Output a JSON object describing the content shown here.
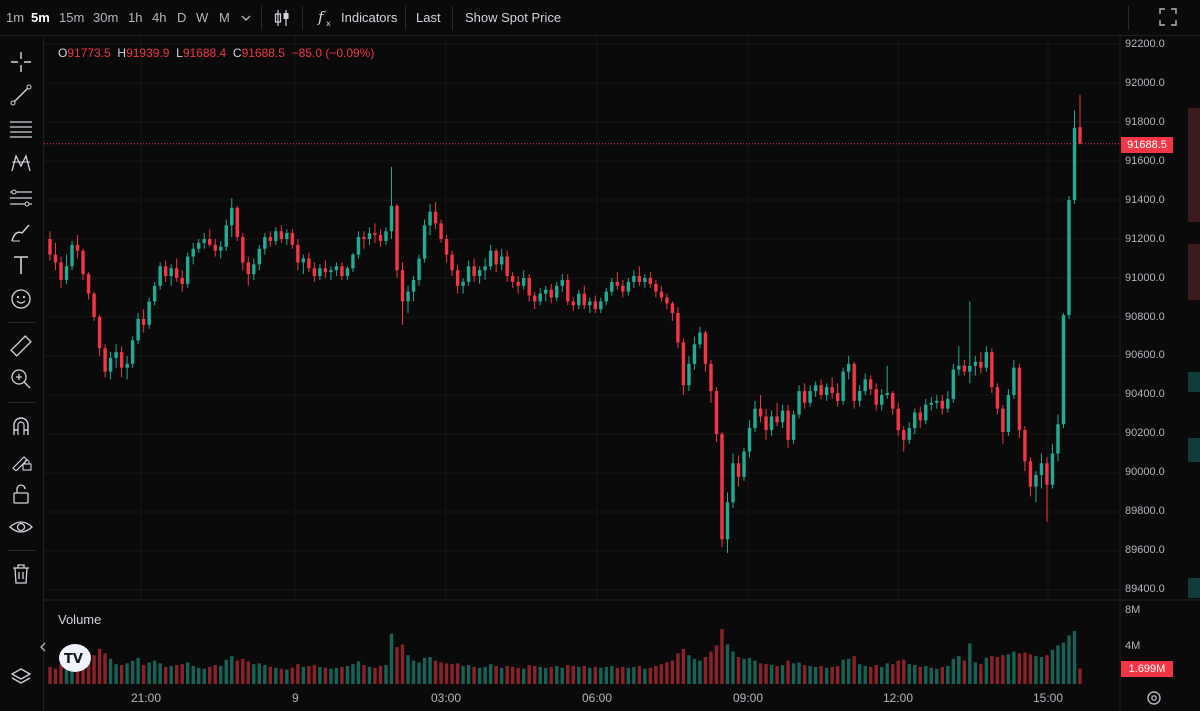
{
  "toolbar": {
    "timeframes": [
      {
        "label": "1m",
        "active": false
      },
      {
        "label": "5m",
        "active": true
      },
      {
        "label": "15m",
        "active": false
      },
      {
        "label": "30m",
        "active": false
      },
      {
        "label": "1h",
        "active": false
      },
      {
        "label": "4h",
        "active": false
      },
      {
        "label": "D",
        "active": false
      },
      {
        "label": "W",
        "active": false
      },
      {
        "label": "M",
        "active": false
      }
    ],
    "indicators_label": "Indicators",
    "last_label": "Last",
    "spot_label": "Show Spot Price"
  },
  "left_tools": [
    "crosshair-icon",
    "trend-line-icon",
    "horizontal-lines-icon",
    "pattern-icon",
    "fib-lines-icon",
    "brush-icon",
    "text-icon",
    "emoji-icon",
    "ruler-icon",
    "zoom-in-icon",
    "magnet-icon",
    "lock-drawing-icon",
    "unlock-icon",
    "eye-icon",
    "trash-icon"
  ],
  "ohlc": {
    "o_key": "O",
    "o": "91773.5",
    "h_key": "H",
    "h": "91939.9",
    "l_key": "L",
    "l": "91688.4",
    "c_key": "C",
    "c": "91688.5",
    "change": "−85.0 (−0.09%)"
  },
  "colors": {
    "up": "#22ab94",
    "down": "#f23645",
    "background": "#0a0a0a"
  },
  "price_axis": [
    "92200.0",
    "92000.0",
    "91800.0",
    "91600.0",
    "91400.0",
    "91200.0",
    "91000.0",
    "90800.0",
    "90600.0",
    "90400.0",
    "90200.0",
    "90000.0",
    "89800.0",
    "89600.0",
    "89400.0"
  ],
  "current_price": "91688.5",
  "volume": {
    "label": "Volume",
    "axis": [
      "8M",
      "4M"
    ],
    "current": "1.699M"
  },
  "time_axis": [
    "21:00",
    "9",
    "03:00",
    "06:00",
    "09:00",
    "12:00",
    "15:00"
  ],
  "chart_data": {
    "type": "candlestick",
    "interval": "5m",
    "y_range": [
      89300,
      92280
    ],
    "volume_range_millions": [
      0,
      8
    ],
    "candles": [
      [
        91200,
        91240,
        91090,
        91120,
        1.9
      ],
      [
        91120,
        91180,
        91040,
        91080,
        1.7
      ],
      [
        91080,
        91110,
        90950,
        90990,
        2.2
      ],
      [
        90990,
        91120,
        90970,
        91060,
        1.8
      ],
      [
        91060,
        91190,
        91040,
        91170,
        2.0
      ],
      [
        91170,
        91220,
        91100,
        91140,
        2.4
      ],
      [
        91140,
        91150,
        90990,
        91020,
        2.6
      ],
      [
        91020,
        91030,
        90890,
        90920,
        2.9
      ],
      [
        90920,
        90930,
        90780,
        90800,
        3.2
      ],
      [
        90800,
        90810,
        90600,
        90640,
        3.9
      ],
      [
        90640,
        90660,
        90490,
        90520,
        3.4
      ],
      [
        90520,
        90620,
        90480,
        90590,
        2.8
      ],
      [
        90590,
        90660,
        90540,
        90620,
        2.2
      ],
      [
        90620,
        90650,
        90490,
        90540,
        2.1
      ],
      [
        90540,
        90600,
        90480,
        90560,
        2.3
      ],
      [
        90560,
        90700,
        90540,
        90680,
        2.6
      ],
      [
        90680,
        90820,
        90660,
        90790,
        2.9
      ],
      [
        90790,
        90840,
        90720,
        90760,
        2.1
      ],
      [
        90760,
        90900,
        90740,
        90880,
        2.4
      ],
      [
        90880,
        90980,
        90860,
        90960,
        2.6
      ],
      [
        90960,
        91080,
        90940,
        91060,
        2.3
      ],
      [
        91060,
        91090,
        90980,
        91010,
        1.9
      ],
      [
        91010,
        91070,
        90960,
        91050,
        2.0
      ],
      [
        91050,
        91100,
        90980,
        91000,
        2.1
      ],
      [
        91000,
        91040,
        90930,
        90970,
        2.2
      ],
      [
        90970,
        91130,
        90950,
        91110,
        2.4
      ],
      [
        91110,
        91180,
        91070,
        91150,
        2.0
      ],
      [
        91150,
        91200,
        91130,
        91180,
        1.8
      ],
      [
        91180,
        91230,
        91150,
        91200,
        1.7
      ],
      [
        91200,
        91250,
        91160,
        91170,
        1.9
      ],
      [
        91170,
        91200,
        91110,
        91140,
        2.1
      ],
      [
        91140,
        91190,
        91100,
        91160,
        2.0
      ],
      [
        91160,
        91300,
        91140,
        91270,
        2.7
      ],
      [
        91270,
        91410,
        91210,
        91360,
        3.1
      ],
      [
        91360,
        91370,
        91190,
        91210,
        2.6
      ],
      [
        91210,
        91230,
        91040,
        91080,
        2.8
      ],
      [
        91080,
        91110,
        90960,
        91020,
        2.5
      ],
      [
        91020,
        91100,
        90990,
        91070,
        2.2
      ],
      [
        91070,
        91170,
        91040,
        91150,
        2.3
      ],
      [
        91150,
        91230,
        91120,
        91210,
        2.1
      ],
      [
        91210,
        91240,
        91160,
        91190,
        1.9
      ],
      [
        91190,
        91260,
        91170,
        91240,
        1.8
      ],
      [
        91240,
        91270,
        91180,
        91200,
        1.7
      ],
      [
        91200,
        91250,
        91170,
        91230,
        1.6
      ],
      [
        91230,
        91250,
        91150,
        91170,
        1.8
      ],
      [
        91170,
        91200,
        91040,
        91080,
        2.2
      ],
      [
        91080,
        91120,
        91020,
        91100,
        1.9
      ],
      [
        91100,
        91130,
        91030,
        91050,
        2.0
      ],
      [
        91050,
        91080,
        90980,
        91010,
        2.1
      ],
      [
        91010,
        91070,
        90990,
        91050,
        1.9
      ],
      [
        91050,
        91090,
        91000,
        91030,
        1.8
      ],
      [
        91030,
        91060,
        90990,
        91040,
        1.7
      ],
      [
        91040,
        91080,
        91010,
        91060,
        1.8
      ],
      [
        91060,
        91080,
        90990,
        91010,
        1.9
      ],
      [
        91010,
        91060,
        90990,
        91050,
        2.0
      ],
      [
        91050,
        91130,
        91030,
        91120,
        2.2
      ],
      [
        91120,
        91240,
        91100,
        91210,
        2.5
      ],
      [
        91210,
        91240,
        91150,
        91200,
        2.1
      ],
      [
        91200,
        91260,
        91170,
        91230,
        1.9
      ],
      [
        91230,
        91280,
        91180,
        91220,
        1.8
      ],
      [
        91220,
        91250,
        91160,
        91190,
        2.0
      ],
      [
        91190,
        91260,
        91170,
        91240,
        2.1
      ],
      [
        91240,
        91570,
        91200,
        91370,
        5.6
      ],
      [
        91370,
        91380,
        91000,
        91040,
        4.1
      ],
      [
        91040,
        91080,
        90760,
        90880,
        4.4
      ],
      [
        90880,
        90960,
        90820,
        90930,
        3.2
      ],
      [
        90930,
        91010,
        90880,
        90990,
        2.6
      ],
      [
        90990,
        91120,
        90960,
        91100,
        2.4
      ],
      [
        91100,
        91300,
        91080,
        91270,
        2.9
      ],
      [
        91270,
        91380,
        91220,
        91340,
        3.0
      ],
      [
        91340,
        91390,
        91250,
        91280,
        2.6
      ],
      [
        91280,
        91300,
        91180,
        91200,
        2.4
      ],
      [
        91200,
        91220,
        91080,
        91120,
        2.3
      ],
      [
        91120,
        91140,
        91010,
        91040,
        2.2
      ],
      [
        91040,
        91070,
        90920,
        90960,
        2.3
      ],
      [
        90960,
        91000,
        90920,
        90980,
        2.0
      ],
      [
        90980,
        91090,
        90960,
        91060,
        2.1
      ],
      [
        91060,
        91100,
        90980,
        91010,
        1.9
      ],
      [
        91010,
        91060,
        90970,
        91040,
        1.8
      ],
      [
        91040,
        91100,
        90990,
        91060,
        1.9
      ],
      [
        91060,
        91170,
        91040,
        91140,
        2.2
      ],
      [
        91140,
        91150,
        91030,
        91070,
        2.0
      ],
      [
        91070,
        91150,
        91040,
        91110,
        1.8
      ],
      [
        91110,
        91140,
        90980,
        91010,
        2.0
      ],
      [
        91010,
        91030,
        90950,
        90980,
        1.9
      ],
      [
        90980,
        91010,
        90920,
        90960,
        1.8
      ],
      [
        90960,
        91040,
        90940,
        91000,
        1.7
      ],
      [
        91000,
        91020,
        90880,
        90910,
        2.1
      ],
      [
        90910,
        90930,
        90840,
        90880,
        2.0
      ],
      [
        90880,
        90950,
        90860,
        90920,
        1.9
      ],
      [
        90920,
        90960,
        90880,
        90940,
        1.8
      ],
      [
        90940,
        90970,
        90870,
        90900,
        1.9
      ],
      [
        90900,
        90980,
        90880,
        90960,
        2.0
      ],
      [
        90960,
        91020,
        90930,
        90990,
        1.8
      ],
      [
        90990,
        91020,
        90860,
        90880,
        2.1
      ],
      [
        90880,
        90900,
        90830,
        90860,
        2.0
      ],
      [
        90860,
        90940,
        90840,
        90920,
        1.9
      ],
      [
        90920,
        90960,
        90840,
        90860,
        2.0
      ],
      [
        90860,
        90900,
        90820,
        90880,
        1.8
      ],
      [
        90880,
        90910,
        90820,
        90840,
        1.9
      ],
      [
        90840,
        90900,
        90820,
        90880,
        1.8
      ],
      [
        90880,
        90950,
        90860,
        90930,
        1.9
      ],
      [
        90930,
        91000,
        90910,
        90980,
        2.0
      ],
      [
        90980,
        91030,
        90940,
        90960,
        1.8
      ],
      [
        90960,
        90990,
        90900,
        90930,
        1.9
      ],
      [
        90930,
        91000,
        90910,
        90980,
        1.8
      ],
      [
        90980,
        91040,
        90950,
        91010,
        1.9
      ],
      [
        91010,
        91060,
        90960,
        90980,
        2.0
      ],
      [
        90980,
        91020,
        90950,
        91000,
        1.7
      ],
      [
        91000,
        91030,
        90950,
        90970,
        1.8
      ],
      [
        90970,
        90990,
        90900,
        90930,
        2.0
      ],
      [
        90930,
        90960,
        90880,
        90900,
        2.2
      ],
      [
        90900,
        90920,
        90840,
        90870,
        2.4
      ],
      [
        90870,
        90880,
        90780,
        90820,
        2.6
      ],
      [
        90820,
        90850,
        90640,
        90670,
        3.4
      ],
      [
        90670,
        90690,
        90400,
        90450,
        3.9
      ],
      [
        90450,
        90600,
        90420,
        90560,
        3.2
      ],
      [
        90560,
        90700,
        90530,
        90660,
        2.8
      ],
      [
        90660,
        90750,
        90640,
        90720,
        2.6
      ],
      [
        90720,
        90730,
        90520,
        90560,
        3.0
      ],
      [
        90560,
        90580,
        90360,
        90420,
        3.6
      ],
      [
        90420,
        90440,
        90160,
        90200,
        4.3
      ],
      [
        90200,
        90210,
        89620,
        89660,
        6.1
      ],
      [
        89660,
        89900,
        89590,
        89850,
        4.4
      ],
      [
        89850,
        90100,
        89820,
        90050,
        3.6
      ],
      [
        90050,
        90090,
        89930,
        89980,
        3.0
      ],
      [
        89980,
        90130,
        89960,
        90110,
        2.8
      ],
      [
        90110,
        90270,
        90080,
        90230,
        2.9
      ],
      [
        90230,
        90370,
        90210,
        90330,
        2.6
      ],
      [
        90330,
        90400,
        90260,
        90290,
        2.3
      ],
      [
        90290,
        90330,
        90170,
        90220,
        2.2
      ],
      [
        90220,
        90320,
        90190,
        90290,
        2.1
      ],
      [
        90290,
        90360,
        90240,
        90260,
        2.0
      ],
      [
        90260,
        90350,
        90230,
        90320,
        2.1
      ],
      [
        90320,
        90350,
        90130,
        90170,
        2.6
      ],
      [
        90170,
        90320,
        90150,
        90300,
        2.3
      ],
      [
        90300,
        90450,
        90280,
        90420,
        2.4
      ],
      [
        90420,
        90460,
        90330,
        90360,
        2.1
      ],
      [
        90360,
        90450,
        90340,
        90420,
        2.0
      ],
      [
        90420,
        90470,
        90390,
        90450,
        1.9
      ],
      [
        90450,
        90480,
        90380,
        90400,
        2.0
      ],
      [
        90400,
        90460,
        90370,
        90440,
        1.8
      ],
      [
        90440,
        90490,
        90380,
        90410,
        1.9
      ],
      [
        90410,
        90460,
        90340,
        90370,
        2.0
      ],
      [
        90370,
        90540,
        90350,
        90520,
        2.7
      ],
      [
        90520,
        90600,
        90480,
        90560,
        2.8
      ],
      [
        90560,
        90570,
        90330,
        90370,
        3.1
      ],
      [
        90370,
        90450,
        90340,
        90420,
        2.2
      ],
      [
        90420,
        90510,
        90400,
        90480,
        2.0
      ],
      [
        90480,
        90500,
        90400,
        90430,
        1.9
      ],
      [
        90430,
        90460,
        90320,
        90350,
        2.1
      ],
      [
        90350,
        90430,
        90320,
        90400,
        1.9
      ],
      [
        90400,
        90550,
        90380,
        90410,
        2.3
      ],
      [
        90410,
        90420,
        90300,
        90330,
        2.2
      ],
      [
        90330,
        90360,
        90190,
        90220,
        2.6
      ],
      [
        90220,
        90240,
        90110,
        90170,
        2.7
      ],
      [
        90170,
        90260,
        90150,
        90230,
        2.2
      ],
      [
        90230,
        90330,
        90200,
        90310,
        2.1
      ],
      [
        90310,
        90340,
        90230,
        90270,
        1.9
      ],
      [
        90270,
        90380,
        90250,
        90350,
        2.0
      ],
      [
        90350,
        90390,
        90320,
        90360,
        1.8
      ],
      [
        90360,
        90400,
        90330,
        90370,
        1.7
      ],
      [
        90370,
        90400,
        90300,
        90330,
        1.9
      ],
      [
        90330,
        90420,
        90310,
        90380,
        2.0
      ],
      [
        90380,
        90560,
        90360,
        90530,
        2.8
      ],
      [
        90530,
        90650,
        90500,
        90550,
        3.1
      ],
      [
        90550,
        90580,
        90500,
        90520,
        2.6
      ],
      [
        90520,
        90880,
        90460,
        90550,
        4.5
      ],
      [
        90550,
        90600,
        90500,
        90570,
        2.4
      ],
      [
        90570,
        90620,
        90510,
        90540,
        2.2
      ],
      [
        90540,
        90650,
        90520,
        90620,
        2.9
      ],
      [
        90620,
        90640,
        90410,
        90440,
        3.1
      ],
      [
        90440,
        90460,
        90300,
        90330,
        3.0
      ],
      [
        90330,
        90350,
        90150,
        90210,
        3.2
      ],
      [
        90210,
        90430,
        90190,
        90400,
        3.3
      ],
      [
        90400,
        90580,
        90380,
        90540,
        3.6
      ],
      [
        90540,
        90560,
        90180,
        90220,
        3.4
      ],
      [
        90220,
        90240,
        90010,
        90060,
        3.5
      ],
      [
        90060,
        90080,
        89880,
        89930,
        3.3
      ],
      [
        89930,
        90010,
        89850,
        89990,
        3.1
      ],
      [
        89990,
        90100,
        89920,
        90050,
        3.0
      ],
      [
        90050,
        90080,
        89750,
        89940,
        3.2
      ],
      [
        89940,
        90150,
        89920,
        90100,
        3.8
      ],
      [
        90100,
        90300,
        90060,
        90250,
        4.3
      ],
      [
        90250,
        90820,
        90230,
        90810,
        4.6
      ],
      [
        90810,
        91420,
        90790,
        91400,
        5.4
      ],
      [
        91400,
        91860,
        91380,
        91770,
        5.9
      ],
      [
        91773.5,
        91939.9,
        91688.4,
        91688.5,
        1.699
      ]
    ]
  }
}
